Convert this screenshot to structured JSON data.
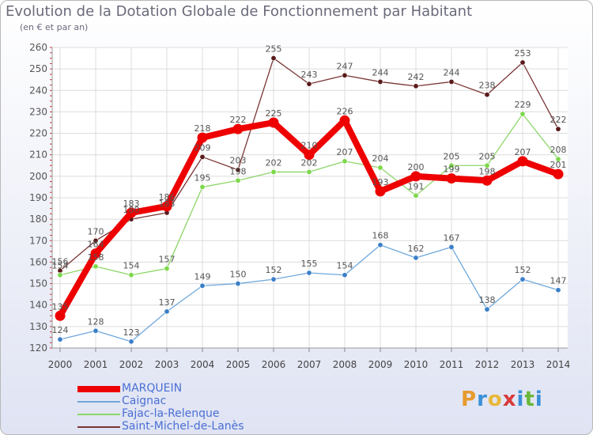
{
  "title": "Evolution de la Dotation Globale de Fonctionnement par Habitant",
  "subtitle": "(en € et par an)",
  "logo": {
    "text": "Proxiti",
    "letters": [
      {
        "ch": "P",
        "color": "#e89a2e"
      },
      {
        "ch": "r",
        "color": "#3a8fd8"
      },
      {
        "ch": "o",
        "color": "#e8b83a"
      },
      {
        "ch": "x",
        "color": "#d93a3a"
      },
      {
        "ch": "i",
        "color": "#3a8fd8"
      },
      {
        "ch": "t",
        "color": "#6ab83a"
      },
      {
        "ch": "i",
        "color": "#3a8fd8"
      }
    ]
  },
  "chart_data": {
    "type": "line",
    "title": "Evolution de la Dotation Globale de Fonctionnement par Habitant",
    "ylabel": "(en € et par an)",
    "xlabel": "",
    "ylim": [
      120,
      260
    ],
    "yticks": [
      120,
      130,
      140,
      150,
      160,
      170,
      180,
      190,
      200,
      210,
      220,
      230,
      240,
      250,
      260
    ],
    "categories": [
      "2000",
      "2001",
      "2002",
      "2003",
      "2004",
      "2005",
      "2006",
      "2007",
      "2008",
      "2009",
      "2010",
      "2011",
      "2012",
      "2013",
      "2014"
    ],
    "grid": true,
    "legend_position": "bottom-left",
    "series": [
      {
        "name": "Saint-Michel-de-Lanès",
        "color": "#7a3535",
        "marker": "#5a1a1a",
        "values": [
          156,
          170,
          180,
          183,
          209,
          203,
          255,
          243,
          247,
          244,
          242,
          244,
          238,
          253,
          222
        ],
        "labels": [
          "156",
          "170",
          "180",
          "183",
          "209",
          "203",
          "255",
          "243",
          "247",
          "244",
          "242",
          "244",
          "238",
          "253",
          "222"
        ]
      },
      {
        "name": "Fajac-la-Relenque",
        "color": "#8ed66a",
        "marker": "#7cd84a",
        "values": [
          154,
          158,
          154,
          157,
          195,
          198,
          202,
          202,
          207,
          204,
          191,
          205,
          205,
          229,
          208
        ],
        "labels": [
          "154",
          "158",
          "154",
          "157",
          "195",
          "198",
          "202",
          "202",
          "207",
          "204",
          "191",
          "205",
          "205",
          "229",
          "208"
        ]
      },
      {
        "name": "Caignac",
        "color": "#6fa8dc",
        "marker": "#3a7fc8",
        "values": [
          124,
          128,
          123,
          137,
          149,
          150,
          152,
          155,
          154,
          168,
          162,
          167,
          138,
          152,
          147
        ],
        "labels": [
          "124",
          "128",
          "123",
          "137",
          "149",
          "150",
          "152",
          "155",
          "154",
          "168",
          "162",
          "167",
          "138",
          "152",
          "147"
        ]
      },
      {
        "name": "MARQUEIN",
        "color": "#ee0000",
        "marker": "#ee0000",
        "values": [
          135,
          164,
          183,
          186,
          218,
          222,
          225,
          210,
          226,
          193,
          200,
          199,
          198,
          207,
          201
        ],
        "labels": [
          "135",
          "164",
          "183",
          "186",
          "218",
          "222",
          "225",
          "210",
          "226",
          "193",
          "200",
          "199",
          "198",
          "207",
          "201"
        ]
      }
    ]
  },
  "legend": [
    {
      "name": "MARQUEIN",
      "color": "#ee0000",
      "thickness": 8
    },
    {
      "name": "Caignac",
      "color": "#6fa8dc",
      "thickness": 2
    },
    {
      "name": "Fajac-la-Relenque",
      "color": "#8ed66a",
      "thickness": 2
    },
    {
      "name": "Saint-Michel-de-Lanès",
      "color": "#7a3535",
      "thickness": 2
    }
  ]
}
